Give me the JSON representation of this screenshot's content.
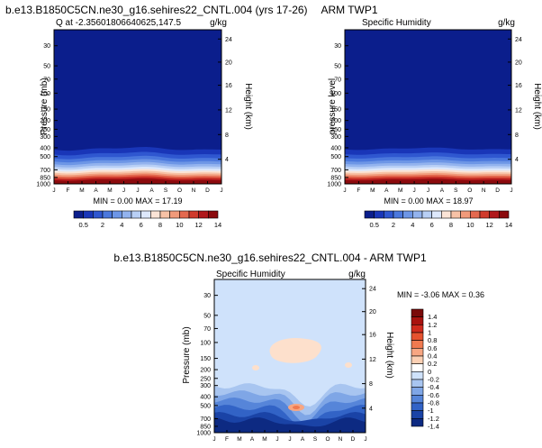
{
  "chart_data": [
    {
      "type": "heatmap",
      "figure_title": "b.e13.B1850C5CN.ne30_g16.sehires22_CNTL.004 (yrs 17-26)",
      "title_left": "Q at -2.35601806640625,147.5",
      "units": "g/kg",
      "ylabel": "Pressure (mb)",
      "ylabel_right": "Height (km)",
      "x_ticks": [
        "J",
        "F",
        "M",
        "A",
        "M",
        "J",
        "J",
        "A",
        "S",
        "O",
        "N",
        "D",
        "J"
      ],
      "y_ticks": [
        {
          "p": 30,
          "label": "30"
        },
        {
          "p": 50,
          "label": "50"
        },
        {
          "p": 70,
          "label": "70"
        },
        {
          "p": 100,
          "label": "100"
        },
        {
          "p": 150,
          "label": "150"
        },
        {
          "p": 200,
          "label": "200"
        },
        {
          "p": 250,
          "label": "250"
        },
        {
          "p": 300,
          "label": "300"
        },
        {
          "p": 400,
          "label": "400"
        },
        {
          "p": 500,
          "label": "500"
        },
        {
          "p": 700,
          "label": "700"
        },
        {
          "p": 850,
          "label": "850"
        },
        {
          "p": 1000,
          "label": "1000"
        }
      ],
      "height_ticks": [
        "24",
        "20",
        "16",
        "12",
        "8",
        "4"
      ],
      "ylim": [
        1000,
        20
      ],
      "stats": "MIN =   0.00 MAX =  17.19",
      "colorbar_labels": [
        "0.5",
        "2",
        "4",
        "6",
        "8",
        "10",
        "12",
        "14"
      ]
    },
    {
      "type": "heatmap",
      "title_center": "ARM TWP1",
      "title_left": "Specific Humidity",
      "units": "g/kg",
      "ylabel": "pressure level",
      "ylabel_right": "Height (km)",
      "x_ticks": [
        "J",
        "F",
        "M",
        "A",
        "M",
        "J",
        "J",
        "A",
        "S",
        "O",
        "N",
        "D",
        "J"
      ],
      "y_ticks": [
        {
          "p": 30,
          "label": "30"
        },
        {
          "p": 50,
          "label": "50"
        },
        {
          "p": 70,
          "label": "70"
        },
        {
          "p": 100,
          "label": "100"
        },
        {
          "p": 150,
          "label": "150"
        },
        {
          "p": 200,
          "label": "200"
        },
        {
          "p": 250,
          "label": "250"
        },
        {
          "p": 300,
          "label": "300"
        },
        {
          "p": 400,
          "label": "400"
        },
        {
          "p": 500,
          "label": "500"
        },
        {
          "p": 700,
          "label": "700"
        },
        {
          "p": 850,
          "label": "850"
        },
        {
          "p": 1000,
          "label": "1000"
        }
      ],
      "height_ticks": [
        "24",
        "20",
        "16",
        "12",
        "8",
        "4"
      ],
      "ylim": [
        1000,
        20
      ],
      "stats": "MIN =   0.00 MAX =  18.97",
      "colorbar_labels": [
        "0.5",
        "2",
        "4",
        "6",
        "8",
        "10",
        "12",
        "14"
      ]
    },
    {
      "type": "heatmap",
      "figure_title": "b.e13.B1850C5CN.ne30_g16.sehires22_CNTL.004 - ARM TWP1",
      "title_left": "Specific Humidity",
      "units": "g/kg",
      "ylabel": "Pressure (mb)",
      "ylabel_right": "Height (km)",
      "x_ticks": [
        "J",
        "F",
        "M",
        "A",
        "M",
        "J",
        "J",
        "A",
        "S",
        "O",
        "N",
        "D",
        "J"
      ],
      "y_ticks": [
        {
          "p": 30,
          "label": "30"
        },
        {
          "p": 50,
          "label": "50"
        },
        {
          "p": 70,
          "label": "70"
        },
        {
          "p": 100,
          "label": "100"
        },
        {
          "p": 150,
          "label": "150"
        },
        {
          "p": 200,
          "label": "200"
        },
        {
          "p": 250,
          "label": "250"
        },
        {
          "p": 300,
          "label": "300"
        },
        {
          "p": 400,
          "label": "400"
        },
        {
          "p": 500,
          "label": "500"
        },
        {
          "p": 700,
          "label": "700"
        },
        {
          "p": 850,
          "label": "850"
        },
        {
          "p": 1000,
          "label": "1000"
        }
      ],
      "height_ticks": [
        "24",
        "20",
        "16",
        "12",
        "8",
        "4"
      ],
      "ylim": [
        1000,
        20
      ],
      "stats": "MIN = -3.06 MAX =   0.36",
      "colorbar_labels": [
        "1.4",
        "1.2",
        "1",
        "0.8",
        "0.6",
        "0.4",
        "0.2",
        "0",
        "-0.2",
        "-0.4",
        "-0.6",
        "-0.8",
        "-1",
        "-1.2",
        "-1.4"
      ]
    }
  ],
  "colors": {
    "seq": [
      "#0b1e8c",
      "#1936b8",
      "#2f57d0",
      "#4b78dd",
      "#6d96e6",
      "#93b3ee",
      "#b8cff5",
      "#dde8fb",
      "#fbe4d6",
      "#f7c2a6",
      "#f09a7a",
      "#e4694f",
      "#d03b2c",
      "#b0181b",
      "#8b0a0d"
    ],
    "div": [
      "#7a0a0a",
      "#a8120f",
      "#cf2a1d",
      "#e6522f",
      "#f07a50",
      "#f7a682",
      "#fbd0b4",
      "#ffffff",
      "#cfe2fb",
      "#a8c5f0",
      "#7fa6e6",
      "#5685d9",
      "#3263c6",
      "#1a43a6",
      "#0d2a82"
    ],
    "top_fill": "#0b1e8c",
    "diff_bg": "#cfe2fb",
    "diff_warm": "#fde0cc"
  }
}
